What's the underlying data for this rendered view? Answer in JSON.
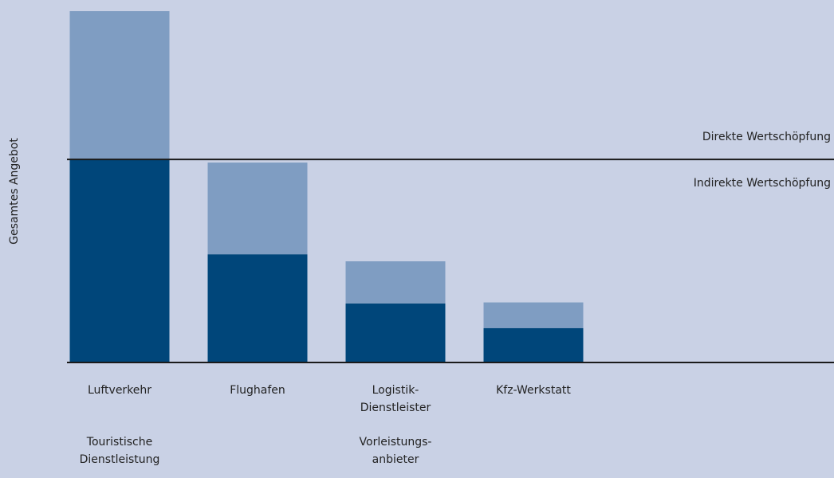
{
  "chart_data": {
    "type": "stacked_bar",
    "y_label": "Gesamtes Angebot",
    "categories": [
      "Luftverkehr",
      "Flughafen",
      "Logistik-\nDienstleister",
      "Kfz-Werkstatt"
    ],
    "series": [
      {
        "color": "#00467a",
        "values": [
          57.8,
          30.8,
          16.8,
          9.8
        ]
      },
      {
        "color": "#7f9dc2",
        "values": [
          42.2,
          26.1,
          12.0,
          7.3
        ]
      }
    ],
    "reference_line": {
      "value": 57.8,
      "label_above": "Direkte Wertschöpfung",
      "label_below": "Indirekte Wertschöpfung"
    },
    "groups": [
      {
        "label": "Touristische\nDienstleistung",
        "category": 0
      },
      {
        "label": "Vorleistungs-\nanbieter",
        "category": 2
      }
    ],
    "ylim": [
      0,
      100
    ]
  }
}
